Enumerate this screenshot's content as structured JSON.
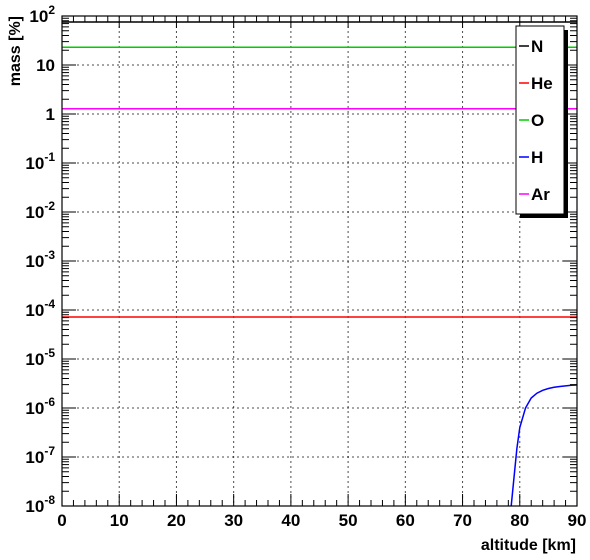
{
  "chart_data": {
    "type": "line",
    "title": "",
    "xlabel": "altitude [km]",
    "ylabel": "mass [%]",
    "x_scale": "linear",
    "y_scale": "log",
    "xlim": [
      0,
      90
    ],
    "ylim": [
      1e-08,
      100
    ],
    "grid": true,
    "legend_position": "top-right",
    "x_ticks": [
      0,
      10,
      20,
      30,
      40,
      50,
      60,
      70,
      80,
      90
    ],
    "y_ticks": [
      {
        "value": 1e-08,
        "base": "10",
        "exp": "-8"
      },
      {
        "value": 1e-07,
        "base": "10",
        "exp": "-7"
      },
      {
        "value": 1e-06,
        "base": "10",
        "exp": "-6"
      },
      {
        "value": 1e-05,
        "base": "10",
        "exp": "-5"
      },
      {
        "value": 0.0001,
        "base": "10",
        "exp": "-4"
      },
      {
        "value": 0.001,
        "base": "10",
        "exp": "-3"
      },
      {
        "value": 0.01,
        "base": "10",
        "exp": "-2"
      },
      {
        "value": 0.1,
        "base": "10",
        "exp": "-1"
      },
      {
        "value": 1,
        "base": "1",
        "exp": ""
      },
      {
        "value": 10,
        "base": "10",
        "exp": ""
      },
      {
        "value": 100,
        "base": "10",
        "exp": "2"
      }
    ],
    "series": [
      {
        "name": "N",
        "color": "#000000",
        "x": [
          0,
          90
        ],
        "y": [
          75.5,
          75.5
        ]
      },
      {
        "name": "He",
        "color": "#ff0000",
        "x": [
          0,
          90
        ],
        "y": [
          7.2e-05,
          7.2e-05
        ]
      },
      {
        "name": "O",
        "color": "#00cc00",
        "x": [
          0,
          90
        ],
        "y": [
          23.1,
          23.1
        ]
      },
      {
        "name": "H",
        "color": "#0000ff",
        "x": [
          78.5,
          79,
          79.5,
          80,
          81,
          82,
          83,
          84,
          85,
          86,
          87,
          88,
          89,
          90
        ],
        "y": [
          1e-08,
          4e-08,
          1.5e-07,
          4e-07,
          1e-06,
          1.6e-06,
          2e-06,
          2.3e-06,
          2.5e-06,
          2.65e-06,
          2.75e-06,
          2.83e-06,
          2.9e-06,
          2.95e-06
        ]
      },
      {
        "name": "Ar",
        "color": "#ff00ff",
        "x": [
          0,
          90
        ],
        "y": [
          1.28,
          1.28
        ]
      }
    ]
  }
}
